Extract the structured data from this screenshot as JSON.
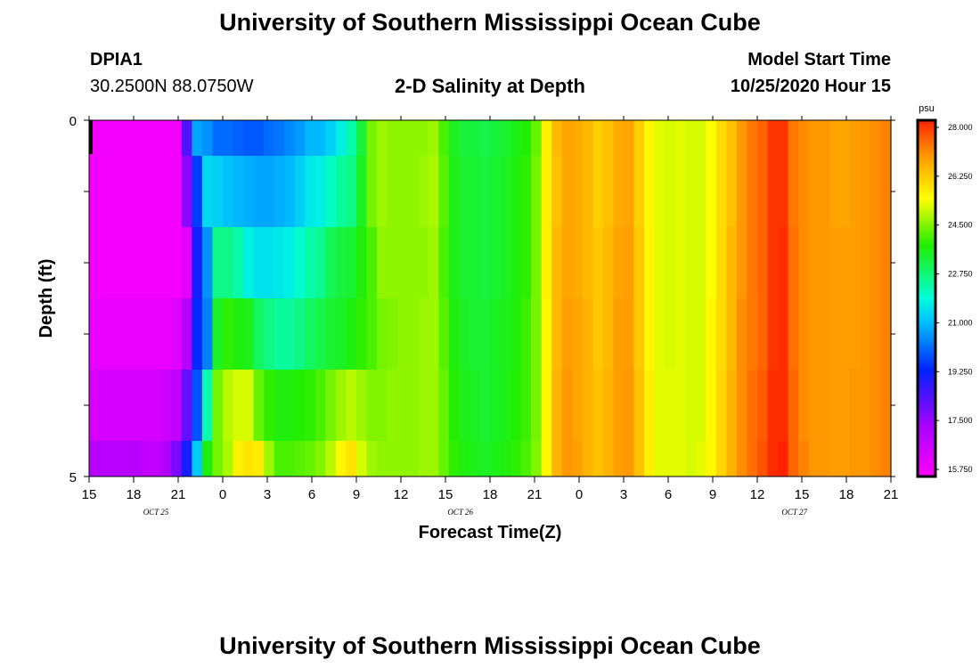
{
  "header": {
    "title": "University of Southern Mississippi Ocean Cube",
    "station_id": "DPIA1",
    "station_coords": "30.2500N 88.0750W",
    "plot_title": "2-D Salinity at Depth",
    "model_start_label": "Model Start Time",
    "model_start_value": "10/25/2020 Hour 15"
  },
  "footer": {
    "title": "University of Southern Mississippi Ocean Cube"
  },
  "chart_data": {
    "type": "heatmap",
    "title": "2-D Salinity at Depth",
    "xlabel": "Forecast Time(Z)",
    "ylabel": "Depth (ft)",
    "x_ticks": [
      "15",
      "18",
      "21",
      "0",
      "3",
      "6",
      "9",
      "12",
      "15",
      "18",
      "21",
      "0",
      "3",
      "6",
      "9",
      "12",
      "15",
      "18",
      "21"
    ],
    "date_labels": [
      {
        "label": "OCT 25",
        "x_hour": 19.5
      },
      {
        "label": "OCT 26",
        "x_hour": 40
      },
      {
        "label": "OCT 27",
        "x_hour": 62.5
      }
    ],
    "y_ticks": [
      "0",
      "5"
    ],
    "ylim": [
      0,
      5
    ],
    "x_range_hours": [
      0,
      54
    ],
    "colorbar": {
      "unit": "psu",
      "min": 15.75,
      "max": 28.0,
      "tick_labels": [
        "28.000",
        "26.250",
        "24.500",
        "22.750",
        "21.000",
        "19.250",
        "17.500",
        "15.750"
      ]
    },
    "layers": [
      {
        "depth_range": [
          0,
          0.5
        ],
        "values": [
          16.0,
          16.0,
          16.0,
          16.0,
          16.0,
          16.0,
          16.0,
          16.0,
          16.0,
          18.5,
          20.8,
          20.6,
          20.2,
          20.2,
          20.1,
          20.0,
          20.0,
          20.2,
          20.3,
          20.5,
          20.7,
          21.0,
          21.0,
          21.3,
          21.7,
          22.3,
          23.2,
          24.3,
          24.6,
          24.5,
          24.5,
          24.5,
          24.5,
          24.6,
          24.0,
          23.4,
          23.2,
          23.2,
          23.1,
          23.2,
          23.3,
          23.5,
          23.7,
          24.2,
          25.5,
          26.3,
          26.6,
          26.5,
          26.3,
          26.0,
          26.2,
          26.5,
          26.6,
          26.0,
          25.4,
          25.1,
          25.0,
          25.1,
          25.0,
          25.0,
          25.3,
          25.8,
          26.2,
          26.8,
          27.1,
          27.3,
          27.8,
          27.8,
          27.1,
          26.9,
          26.8,
          26.8,
          26.6,
          26.6,
          26.7,
          26.8,
          26.9,
          27.0
        ]
      },
      {
        "depth_range": [
          0.5,
          1.5
        ],
        "values": [
          16.0,
          16.0,
          16.0,
          16.0,
          16.0,
          16.0,
          16.0,
          16.0,
          16.0,
          17.8,
          19.7,
          21.4,
          21.3,
          21.1,
          21.0,
          20.9,
          20.8,
          20.8,
          20.9,
          21.0,
          21.3,
          21.6,
          21.7,
          22.1,
          22.4,
          22.6,
          23.4,
          24.3,
          24.6,
          24.5,
          24.5,
          24.5,
          24.6,
          24.7,
          24.1,
          23.5,
          23.3,
          23.3,
          23.2,
          23.3,
          23.4,
          23.6,
          23.8,
          24.3,
          25.5,
          26.2,
          26.6,
          26.5,
          26.3,
          26.0,
          26.2,
          26.5,
          26.6,
          26.0,
          25.4,
          25.1,
          25.0,
          25.1,
          25.0,
          25.0,
          25.3,
          25.8,
          26.2,
          26.8,
          27.1,
          27.3,
          27.8,
          27.8,
          27.1,
          26.9,
          26.8,
          26.8,
          26.6,
          26.6,
          26.7,
          26.8,
          26.9,
          27.0
        ]
      },
      {
        "depth_range": [
          1.5,
          2.5
        ],
        "values": [
          16.0,
          16.0,
          16.0,
          16.0,
          16.0,
          16.0,
          16.0,
          16.0,
          16.0,
          16.3,
          19.2,
          20.6,
          22.6,
          22.6,
          22.3,
          21.7,
          21.5,
          21.5,
          21.6,
          21.7,
          22.0,
          22.3,
          22.5,
          23.0,
          23.2,
          23.3,
          23.6,
          24.0,
          24.5,
          24.5,
          24.5,
          24.5,
          24.5,
          24.6,
          24.0,
          23.5,
          23.3,
          23.3,
          23.2,
          23.3,
          23.4,
          23.6,
          23.8,
          24.3,
          25.5,
          26.3,
          26.6,
          26.5,
          26.3,
          26.1,
          26.3,
          26.6,
          26.7,
          26.1,
          25.4,
          25.1,
          25.0,
          25.1,
          25.0,
          25.0,
          25.3,
          25.8,
          26.3,
          26.8,
          27.1,
          27.3,
          27.8,
          27.9,
          27.2,
          26.9,
          26.8,
          26.8,
          26.7,
          26.7,
          26.7,
          26.8,
          26.9,
          27.0
        ]
      },
      {
        "depth_range": [
          2.5,
          3.5
        ],
        "values": [
          16.2,
          16.2,
          16.2,
          16.2,
          16.2,
          16.2,
          16.2,
          16.2,
          16.4,
          17.2,
          19.5,
          20.4,
          23.4,
          23.8,
          23.6,
          23.5,
          22.9,
          22.6,
          22.4,
          22.4,
          22.6,
          22.9,
          23.1,
          23.3,
          23.4,
          23.6,
          23.8,
          24.0,
          24.3,
          24.4,
          24.5,
          24.5,
          24.6,
          24.6,
          24.1,
          23.6,
          23.4,
          23.3,
          23.3,
          23.4,
          23.5,
          23.6,
          23.9,
          24.3,
          25.4,
          26.3,
          26.7,
          26.6,
          26.4,
          26.1,
          26.3,
          26.7,
          26.7,
          26.1,
          25.4,
          25.1,
          25.0,
          25.1,
          25.0,
          25.0,
          25.4,
          25.8,
          26.3,
          26.9,
          27.1,
          27.3,
          27.8,
          27.9,
          27.2,
          26.9,
          26.8,
          26.8,
          26.7,
          26.7,
          26.7,
          26.8,
          26.9,
          27.0
        ]
      },
      {
        "depth_range": [
          3.5,
          4.5
        ],
        "values": [
          16.6,
          16.6,
          16.6,
          16.6,
          16.6,
          16.6,
          16.6,
          16.8,
          17.0,
          18.3,
          19.9,
          22.3,
          24.3,
          24.8,
          25.0,
          25.0,
          24.2,
          23.8,
          23.6,
          23.6,
          23.7,
          23.8,
          24.0,
          24.3,
          24.6,
          24.8,
          24.6,
          24.4,
          24.4,
          24.5,
          24.5,
          24.5,
          24.6,
          24.6,
          24.2,
          23.7,
          23.5,
          23.4,
          23.3,
          23.4,
          23.5,
          23.7,
          23.9,
          24.3,
          25.4,
          26.4,
          26.8,
          26.6,
          26.4,
          26.2,
          26.4,
          26.7,
          26.8,
          26.2,
          25.5,
          25.1,
          25.1,
          25.1,
          25.0,
          25.0,
          25.4,
          25.9,
          26.4,
          26.9,
          27.2,
          27.4,
          27.9,
          27.9,
          27.3,
          26.9,
          26.8,
          26.8,
          26.7,
          26.7,
          26.8,
          26.8,
          26.9,
          27.0
        ]
      },
      {
        "depth_range": [
          4.5,
          5.0
        ],
        "values": [
          17.2,
          17.2,
          17.2,
          17.2,
          17.2,
          17.0,
          17.0,
          17.3,
          18.0,
          19.2,
          21.2,
          23.6,
          24.3,
          24.7,
          25.5,
          25.7,
          25.6,
          24.6,
          24.0,
          24.0,
          24.1,
          24.2,
          24.4,
          24.8,
          25.4,
          25.7,
          25.0,
          24.6,
          24.5,
          24.5,
          24.5,
          24.5,
          24.6,
          24.6,
          24.2,
          23.8,
          23.6,
          23.5,
          23.4,
          23.5,
          23.6,
          23.8,
          24.0,
          24.4,
          25.4,
          26.4,
          26.8,
          26.7,
          26.4,
          26.2,
          26.4,
          26.7,
          26.8,
          26.2,
          25.5,
          25.1,
          25.1,
          25.1,
          25.0,
          25.1,
          25.4,
          25.9,
          26.4,
          26.9,
          27.2,
          27.5,
          27.9,
          28.0,
          27.3,
          27.0,
          26.8,
          26.8,
          26.7,
          26.7,
          26.8,
          26.8,
          26.9,
          27.0
        ]
      }
    ]
  }
}
